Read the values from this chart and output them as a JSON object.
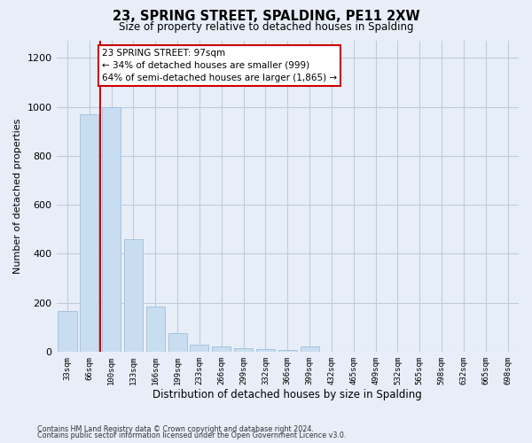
{
  "title": "23, SPRING STREET, SPALDING, PE11 2XW",
  "subtitle": "Size of property relative to detached houses in Spalding",
  "xlabel": "Distribution of detached houses by size in Spalding",
  "ylabel": "Number of detached properties",
  "bar_color": "#c9ddf0",
  "bar_edge_color": "#9dbedd",
  "grid_color": "#c0ccdc",
  "background_color": "#e8eef8",
  "categories": [
    "33sqm",
    "66sqm",
    "100sqm",
    "133sqm",
    "166sqm",
    "199sqm",
    "233sqm",
    "266sqm",
    "299sqm",
    "332sqm",
    "366sqm",
    "399sqm",
    "432sqm",
    "465sqm",
    "499sqm",
    "532sqm",
    "565sqm",
    "598sqm",
    "632sqm",
    "665sqm",
    "698sqm"
  ],
  "values": [
    165,
    970,
    1000,
    460,
    185,
    75,
    28,
    20,
    14,
    11,
    5,
    20,
    0,
    0,
    0,
    0,
    0,
    0,
    0,
    0,
    0
  ],
  "marker_idx": 2,
  "marker_color": "#cc0000",
  "annotation_title": "23 SPRING STREET: 97sqm",
  "annotation_line1": "← 34% of detached houses are smaller (999)",
  "annotation_line2": "64% of semi-detached houses are larger (1,865) →",
  "annotation_box_color": "#ffffff",
  "annotation_border_color": "#cc0000",
  "ylim": [
    0,
    1270
  ],
  "yticks": [
    0,
    200,
    400,
    600,
    800,
    1000,
    1200
  ],
  "footer1": "Contains HM Land Registry data © Crown copyright and database right 2024.",
  "footer2": "Contains public sector information licensed under the Open Government Licence v3.0."
}
